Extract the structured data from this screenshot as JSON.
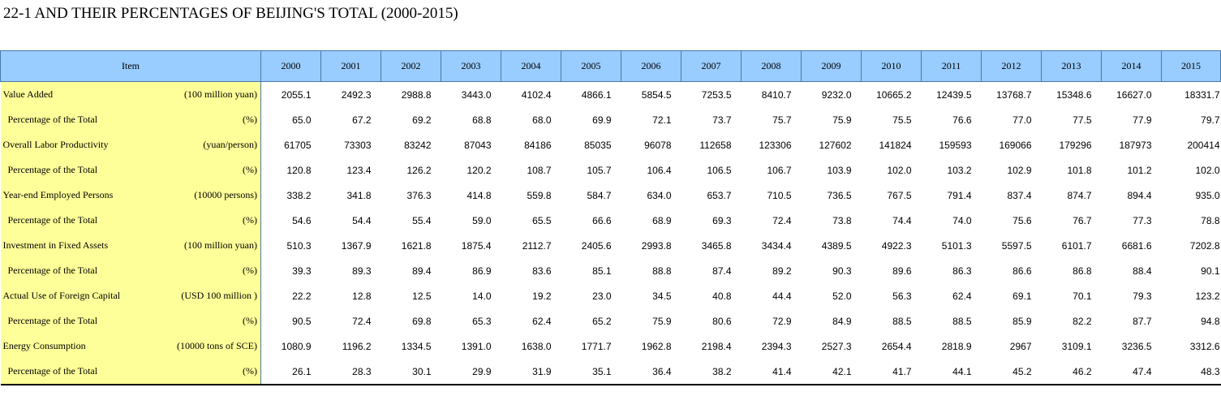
{
  "title": "22-1  AND THEIR PERCENTAGES OF BEIJING'S TOTAL (2000-2015)",
  "header": {
    "item": "Item",
    "years": [
      "2000",
      "2001",
      "2002",
      "2003",
      "2004",
      "2005",
      "2006",
      "2007",
      "2008",
      "2009",
      "2010",
      "2011",
      "2012",
      "2013",
      "2014",
      "2015"
    ]
  },
  "rows": [
    {
      "label": "Value Added",
      "unit": "(100 million yuan)",
      "sub": false,
      "values": [
        "2055.1",
        "2492.3",
        "2988.8",
        "3443.0",
        "4102.4",
        "4866.1",
        "5854.5",
        "7253.5",
        "8410.7",
        "9232.0",
        "10665.2",
        "12439.5",
        "13768.7",
        "15348.6",
        "16627.0",
        "18331.7"
      ]
    },
    {
      "label": "Percentage of the Total",
      "unit": "(%)",
      "sub": true,
      "values": [
        "65.0",
        "67.2",
        "69.2",
        "68.8",
        "68.0",
        "69.9",
        "72.1",
        "73.7",
        "75.7",
        "75.9",
        "75.5",
        "76.6",
        "77.0",
        "77.5",
        "77.9",
        "79.7"
      ]
    },
    {
      "label": "Overall Labor Productivity",
      "unit": "(yuan/person)",
      "sub": false,
      "values": [
        "61705",
        "73303",
        "83242",
        "87043",
        "84186",
        "85035",
        "96078",
        "112658",
        "123306",
        "127602",
        "141824",
        "159593",
        "169066",
        "179296",
        "187973",
        "200414"
      ]
    },
    {
      "label": "Percentage of the Total",
      "unit": "(%)",
      "sub": true,
      "values": [
        "120.8",
        "123.4",
        "126.2",
        "120.2",
        "108.7",
        "105.7",
        "106.4",
        "106.5",
        "106.7",
        "103.9",
        "102.0",
        "103.2",
        "102.9",
        "101.8",
        "101.2",
        "102.0"
      ]
    },
    {
      "label": "Year-end Employed Persons",
      "unit": "(10000 persons)",
      "sub": false,
      "values": [
        "338.2",
        "341.8",
        "376.3",
        "414.8",
        "559.8",
        "584.7",
        "634.0",
        "653.7",
        "710.5",
        "736.5",
        "767.5",
        "791.4",
        "837.4",
        "874.7",
        "894.4",
        "935.0"
      ]
    },
    {
      "label": "Percentage of the Total",
      "unit": "(%)",
      "sub": true,
      "values": [
        "54.6",
        "54.4",
        "55.4",
        "59.0",
        "65.5",
        "66.6",
        "68.9",
        "69.3",
        "72.4",
        "73.8",
        "74.4",
        "74.0",
        "75.6",
        "76.7",
        "77.3",
        "78.8"
      ]
    },
    {
      "label": "Investment in Fixed Assets",
      "unit": "(100 million yuan)",
      "sub": false,
      "values": [
        "510.3",
        "1367.9",
        "1621.8",
        "1875.4",
        "2112.7",
        "2405.6",
        "2993.8",
        "3465.8",
        "3434.4",
        "4389.5",
        "4922.3",
        "5101.3",
        "5597.5",
        "6101.7",
        "6681.6",
        "7202.8"
      ]
    },
    {
      "label": "Percentage of the Total",
      "unit": "(%)",
      "sub": true,
      "values": [
        "39.3",
        "89.3",
        "89.4",
        "86.9",
        "83.6",
        "85.1",
        "88.8",
        "87.4",
        "89.2",
        "90.3",
        "89.6",
        "86.3",
        "86.6",
        "86.8",
        "88.4",
        "90.1"
      ]
    },
    {
      "label": "Actual Use of Foreign Capital",
      "unit": "(USD 100 million )",
      "sub": false,
      "values": [
        "22.2",
        "12.8",
        "12.5",
        "14.0",
        "19.2",
        "23.0",
        "34.5",
        "40.8",
        "44.4",
        "52.0",
        "56.3",
        "62.4",
        "69.1",
        "70.1",
        "79.3",
        "123.2"
      ]
    },
    {
      "label": "Percentage of the Total",
      "unit": "(%)",
      "sub": true,
      "values": [
        "90.5",
        "72.4",
        "69.8",
        "65.3",
        "62.4",
        "65.2",
        "75.9",
        "80.6",
        "72.9",
        "84.9",
        "88.5",
        "88.5",
        "85.9",
        "82.2",
        "87.7",
        "94.8"
      ]
    },
    {
      "label": "Energy  Consumption",
      "unit": "(10000 tons of SCE)",
      "sub": false,
      "values": [
        "1080.9",
        "1196.2",
        "1334.5",
        "1391.0",
        "1638.0",
        "1771.7",
        "1962.8",
        "2198.4",
        "2394.3",
        "2527.3",
        "2654.4",
        "2818.9",
        "2967",
        "3109.1",
        "3236.5",
        "3312.6"
      ]
    },
    {
      "label": "Percentage of the Total",
      "unit": "(%)",
      "sub": true,
      "values": [
        "26.1",
        "28.3",
        "30.1",
        "29.9",
        "31.9",
        "35.1",
        "36.4",
        "38.2",
        "41.4",
        "42.1",
        "41.7",
        "44.1",
        "45.2",
        "46.2",
        "47.4",
        "48.3"
      ]
    }
  ]
}
